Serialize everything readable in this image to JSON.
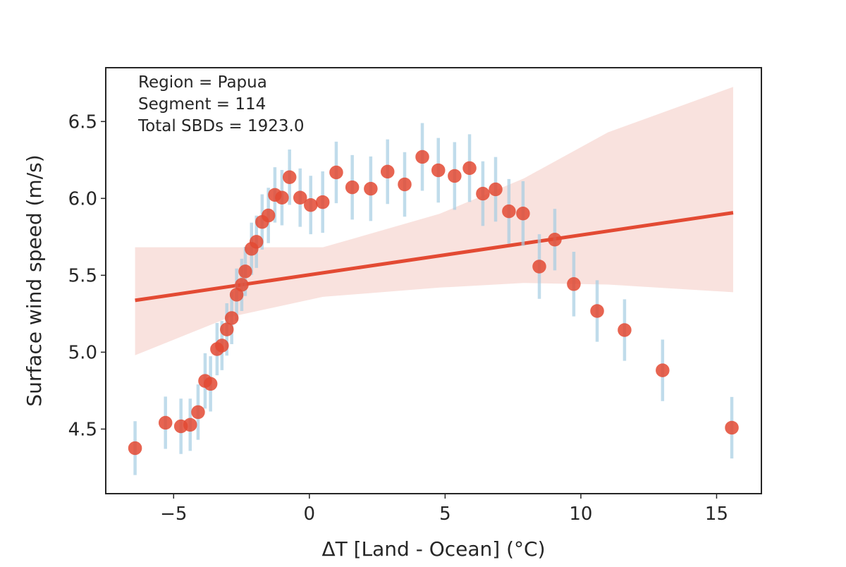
{
  "chart_data": {
    "type": "scatter",
    "xlabel": "ΔT [Land - Ocean] (°C)",
    "ylabel": "Surface wind speed (m/s)",
    "xlim": [
      -7.5,
      16.65
    ],
    "ylim": [
      4.08,
      6.85
    ],
    "xticks": [
      -5,
      0,
      5,
      10,
      15
    ],
    "xtick_labels": [
      "−5",
      "0",
      "5",
      "10",
      "15"
    ],
    "yticks": [
      4.5,
      5.0,
      5.5,
      6.0,
      6.5
    ],
    "ytick_labels": [
      "4.5",
      "5.0",
      "5.5",
      "6.0",
      "6.5"
    ],
    "grid": false,
    "annotations": [
      "Region = Papua",
      "Segment = 114",
      "Total SBDs = 1923.0"
    ],
    "colors": {
      "points": "#e34a33",
      "error_bars": "#a6cee3",
      "fit": "#e34a33",
      "ci_band": "#f4c6bd"
    },
    "points": {
      "x": [
        -6.42,
        -5.3,
        -4.73,
        -4.39,
        -4.1,
        -3.84,
        -3.64,
        -3.4,
        -3.22,
        -3.04,
        -2.86,
        -2.68,
        -2.49,
        -2.36,
        -2.13,
        -1.95,
        -1.74,
        -1.51,
        -1.27,
        -1.01,
        -0.73,
        -0.34,
        0.05,
        0.49,
        0.99,
        1.58,
        2.26,
        2.88,
        3.51,
        4.16,
        4.75,
        5.35,
        5.9,
        6.39,
        6.86,
        7.35,
        7.87,
        8.47,
        9.04,
        9.74,
        10.6,
        11.61,
        13.01,
        15.56
      ],
      "y": [
        4.376,
        4.541,
        4.518,
        4.528,
        4.61,
        4.813,
        4.794,
        5.02,
        5.043,
        5.148,
        5.222,
        5.374,
        5.438,
        5.525,
        5.672,
        5.718,
        5.847,
        5.889,
        6.023,
        6.005,
        6.138,
        6.005,
        5.957,
        5.976,
        6.169,
        6.072,
        6.063,
        6.174,
        6.091,
        6.27,
        6.183,
        6.146,
        6.197,
        6.031,
        6.059,
        5.916,
        5.902,
        5.557,
        5.732,
        5.443,
        5.268,
        5.144,
        4.882,
        4.509
      ],
      "err": [
        0.175,
        0.17,
        0.18,
        0.17,
        0.18,
        0.18,
        0.18,
        0.17,
        0.16,
        0.17,
        0.17,
        0.17,
        0.17,
        0.16,
        0.17,
        0.17,
        0.18,
        0.18,
        0.18,
        0.18,
        0.18,
        0.19,
        0.19,
        0.2,
        0.2,
        0.21,
        0.21,
        0.21,
        0.21,
        0.22,
        0.21,
        0.22,
        0.22,
        0.21,
        0.21,
        0.21,
        0.21,
        0.21,
        0.2,
        0.21,
        0.2,
        0.2,
        0.2,
        0.2
      ]
    },
    "fit_line": {
      "x": [
        -6.42,
        15.61
      ],
      "y": [
        5.337,
        5.907
      ]
    },
    "ci_band": {
      "x": [
        -6.42,
        -2.9,
        0.5,
        4.8,
        7.9,
        11.0,
        15.61
      ],
      "upper": [
        5.682,
        5.682,
        5.682,
        5.9,
        6.13,
        6.43,
        6.725
      ],
      "lower": [
        4.98,
        5.23,
        5.36,
        5.42,
        5.45,
        5.44,
        5.39
      ]
    }
  }
}
